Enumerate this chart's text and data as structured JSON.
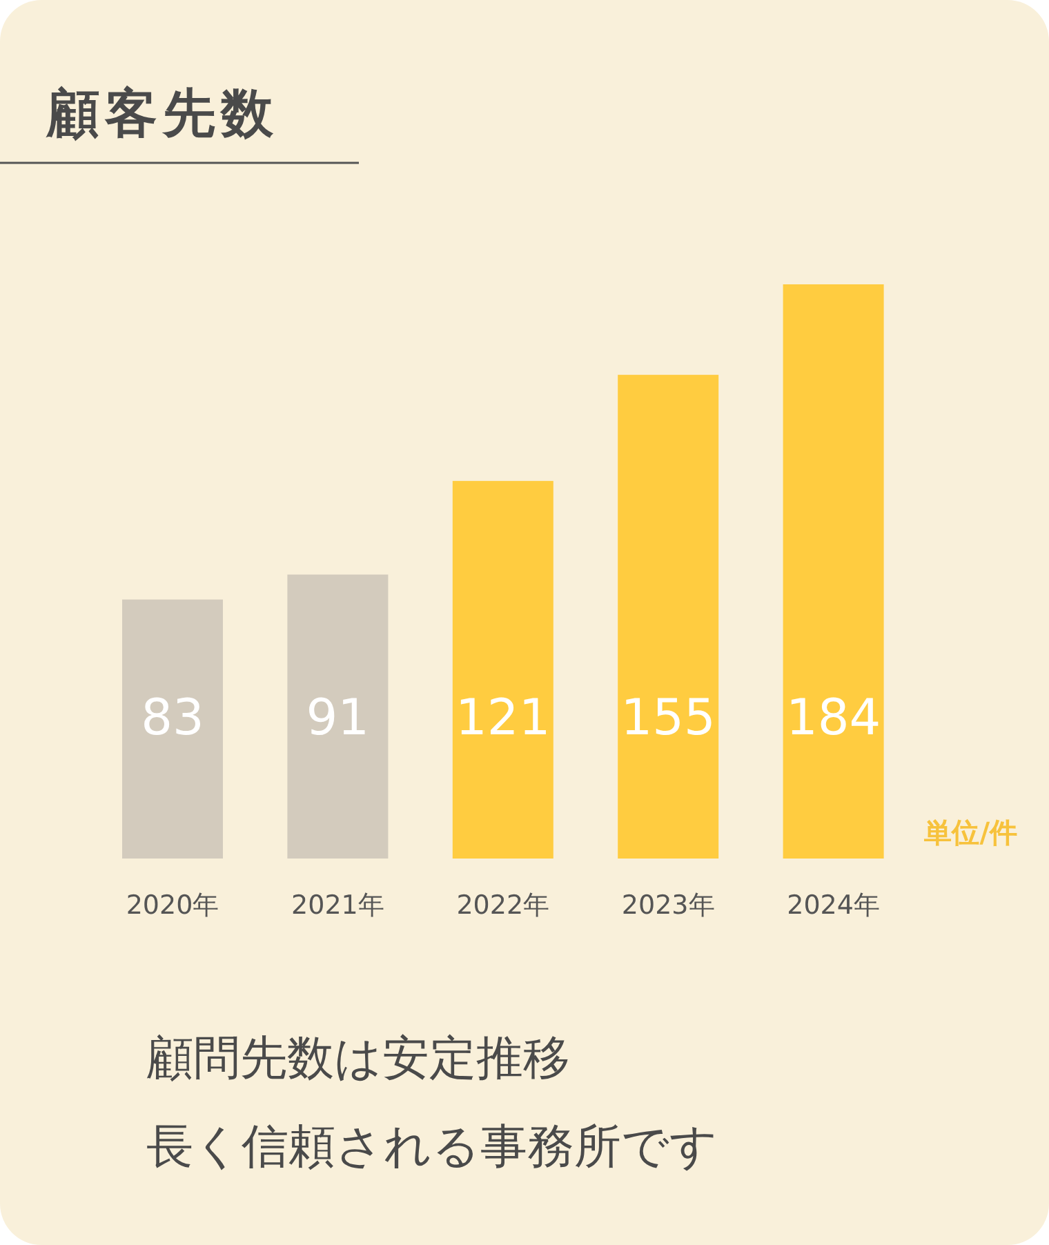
{
  "chart_data": {
    "type": "bar",
    "title": "顧客先数",
    "categories": [
      "2020年",
      "2021年",
      "2022年",
      "2023年",
      "2024年"
    ],
    "values": [
      83,
      91,
      121,
      155,
      184
    ],
    "colors": [
      "#d3cbbd",
      "#d3cbbd",
      "#ffcc40",
      "#ffcc40",
      "#ffcc40"
    ],
    "data_labels": true,
    "annotations": [
      "単位/件",
      "顧問先数は安定推移",
      "長く信頼される事務所です"
    ]
  }
}
